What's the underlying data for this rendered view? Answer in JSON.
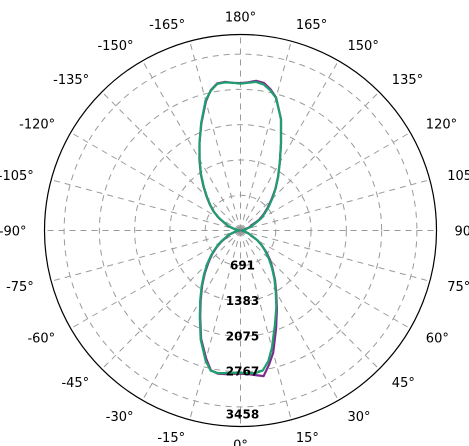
{
  "chart_data": {
    "type": "polar",
    "title": "",
    "orientation": "0° at bottom, 180° at top; positive angles on the right, negative angles on the left",
    "grid": true,
    "angle_ticks": [
      {
        "angle": 0,
        "label": "0°"
      },
      {
        "angle": 15,
        "label": "15°"
      },
      {
        "angle": 30,
        "label": "30°"
      },
      {
        "angle": 45,
        "label": "45°"
      },
      {
        "angle": 60,
        "label": "60°"
      },
      {
        "angle": 75,
        "label": "75°"
      },
      {
        "angle": 90,
        "label": "90"
      },
      {
        "angle": 105,
        "label": "105"
      },
      {
        "angle": 120,
        "label": "120°"
      },
      {
        "angle": 135,
        "label": "135°"
      },
      {
        "angle": 150,
        "label": "150°"
      },
      {
        "angle": 165,
        "label": "165°"
      },
      {
        "angle": 180,
        "label": "180°"
      },
      {
        "angle": -165,
        "label": "-165°"
      },
      {
        "angle": -150,
        "label": "-150°"
      },
      {
        "angle": -135,
        "label": "-135°"
      },
      {
        "angle": -120,
        "label": "-120°"
      },
      {
        "angle": -105,
        "label": "-105°"
      },
      {
        "angle": -90,
        "label": "-90°"
      },
      {
        "angle": -75,
        "label": "-75°"
      },
      {
        "angle": -60,
        "label": "-60°"
      },
      {
        "angle": -45,
        "label": "-45°"
      },
      {
        "angle": -30,
        "label": "-30°"
      },
      {
        "angle": -15,
        "label": "-15°"
      }
    ],
    "radial_ticks": [
      {
        "value": 691,
        "label": "691"
      },
      {
        "value": 1383,
        "label": "1383"
      },
      {
        "value": 2075,
        "label": "2075"
      },
      {
        "value": 2767,
        "label": "2767"
      },
      {
        "value": 3458,
        "label": "3458"
      }
    ],
    "rlim": [
      0,
      3458
    ],
    "series": [
      {
        "color": "#7b2d8e",
        "theta": [
          0,
          3,
          6,
          9,
          12,
          15,
          20,
          25,
          30,
          35,
          40,
          45,
          50,
          55,
          60,
          70,
          80,
          90,
          100,
          110,
          120,
          125,
          130,
          135,
          140,
          145,
          150,
          155,
          160,
          165,
          168,
          171,
          174,
          177,
          180,
          -177,
          -174,
          -171,
          -168,
          -165,
          -160,
          -155,
          -150,
          -145,
          -140,
          -135,
          -130,
          -125,
          -120,
          -110,
          -100,
          -90,
          -80,
          -70,
          -60,
          -55,
          -50,
          -45,
          -40,
          -35,
          -30,
          -25,
          -20,
          -15,
          -12,
          -9,
          -6,
          -3
        ],
        "r": [
          2810,
          2820,
          2850,
          2890,
          2690,
          2480,
          2040,
          1690,
          1400,
          1180,
          980,
          820,
          660,
          510,
          380,
          170,
          60,
          20,
          60,
          180,
          420,
          550,
          690,
          860,
          1060,
          1280,
          1540,
          1880,
          2320,
          2700,
          2830,
          2930,
          2950,
          2910,
          2890,
          2900,
          2930,
          2920,
          2810,
          2620,
          2240,
          1900,
          1610,
          1360,
          1130,
          940,
          780,
          640,
          490,
          260,
          90,
          25,
          80,
          230,
          430,
          570,
          730,
          890,
          1090,
          1310,
          1560,
          1870,
          2260,
          2600,
          2800,
          2840,
          2830,
          2810
        ]
      },
      {
        "color": "#1f9e6e",
        "theta": [
          0,
          3,
          6,
          9,
          12,
          15,
          20,
          25,
          30,
          35,
          40,
          45,
          50,
          55,
          60,
          70,
          80,
          90,
          100,
          110,
          120,
          125,
          130,
          135,
          140,
          145,
          150,
          155,
          160,
          165,
          168,
          171,
          174,
          177,
          180,
          -177,
          -174,
          -171,
          -168,
          -165,
          -160,
          -155,
          -150,
          -145,
          -140,
          -135,
          -130,
          -125,
          -120,
          -110,
          -100,
          -90,
          -80,
          -70,
          -60,
          -55,
          -50,
          -45,
          -40,
          -35,
          -30,
          -25,
          -20,
          -15,
          -12,
          -9,
          -6,
          -3
        ],
        "r": [
          2790,
          2800,
          2810,
          2780,
          2620,
          2380,
          1970,
          1660,
          1380,
          1160,
          960,
          790,
          640,
          510,
          380,
          170,
          70,
          25,
          80,
          220,
          460,
          580,
          720,
          880,
          1070,
          1290,
          1540,
          1880,
          2320,
          2690,
          2810,
          2900,
          2930,
          2900,
          2880,
          2900,
          2920,
          2910,
          2800,
          2640,
          2250,
          1900,
          1600,
          1350,
          1120,
          930,
          770,
          630,
          480,
          250,
          90,
          30,
          90,
          250,
          450,
          590,
          750,
          920,
          1110,
          1330,
          1580,
          1890,
          2280,
          2640,
          2810,
          2830,
          2810,
          2790
        ]
      }
    ]
  }
}
